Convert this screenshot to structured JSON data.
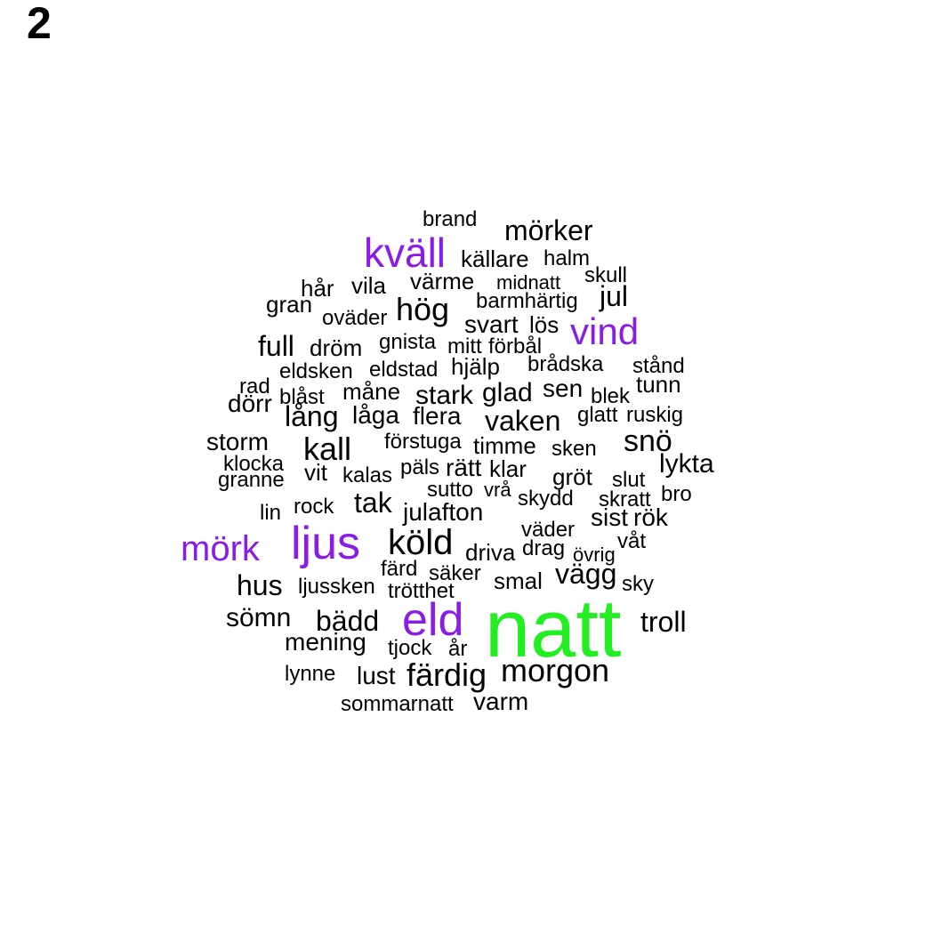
{
  "panel_label": "2",
  "colors": {
    "default": "#000000",
    "purple": "#8b1be6",
    "green": "#22ee22"
  },
  "words": [
    {
      "text": "brand",
      "weight": 2,
      "color": "default"
    },
    {
      "text": "mörker",
      "weight": 4,
      "color": "default"
    },
    {
      "text": "kväll",
      "weight": 7,
      "color": "purple"
    },
    {
      "text": "källare",
      "weight": 3,
      "color": "default"
    },
    {
      "text": "halm",
      "weight": 3,
      "color": "default"
    },
    {
      "text": "skull",
      "weight": 2,
      "color": "default"
    },
    {
      "text": "hår",
      "weight": 3,
      "color": "default"
    },
    {
      "text": "vila",
      "weight": 3,
      "color": "default"
    },
    {
      "text": "värme",
      "weight": 3,
      "color": "default"
    },
    {
      "text": "midnatt",
      "weight": 2,
      "color": "default"
    },
    {
      "text": "jul",
      "weight": 4,
      "color": "default"
    },
    {
      "text": "gran",
      "weight": 3,
      "color": "default"
    },
    {
      "text": "barmhärtig",
      "weight": 2,
      "color": "default"
    },
    {
      "text": "hög",
      "weight": 5,
      "color": "default"
    },
    {
      "text": "oväder",
      "weight": 2,
      "color": "default"
    },
    {
      "text": "svart",
      "weight": 4,
      "color": "default"
    },
    {
      "text": "lös",
      "weight": 3,
      "color": "default"
    },
    {
      "text": "vind",
      "weight": 6,
      "color": "purple"
    },
    {
      "text": "full",
      "weight": 4,
      "color": "default"
    },
    {
      "text": "dröm",
      "weight": 3,
      "color": "default"
    },
    {
      "text": "gnista",
      "weight": 2,
      "color": "default"
    },
    {
      "text": "mitt",
      "weight": 2,
      "color": "default"
    },
    {
      "text": "förbål",
      "weight": 2,
      "color": "default"
    },
    {
      "text": "eldsken",
      "weight": 2,
      "color": "default"
    },
    {
      "text": "eldstad",
      "weight": 2,
      "color": "default"
    },
    {
      "text": "hjälp",
      "weight": 3,
      "color": "default"
    },
    {
      "text": "brådska",
      "weight": 2,
      "color": "default"
    },
    {
      "text": "stånd",
      "weight": 2,
      "color": "default"
    },
    {
      "text": "rad",
      "weight": 2,
      "color": "default"
    },
    {
      "text": "blåst",
      "weight": 2,
      "color": "default"
    },
    {
      "text": "måne",
      "weight": 3,
      "color": "default"
    },
    {
      "text": "stark",
      "weight": 4,
      "color": "default"
    },
    {
      "text": "glad",
      "weight": 4,
      "color": "default"
    },
    {
      "text": "sen",
      "weight": 3,
      "color": "default"
    },
    {
      "text": "blek",
      "weight": 2,
      "color": "default"
    },
    {
      "text": "tunn",
      "weight": 2,
      "color": "default"
    },
    {
      "text": "dörr",
      "weight": 3,
      "color": "default"
    },
    {
      "text": "lång",
      "weight": 4,
      "color": "default"
    },
    {
      "text": "låga",
      "weight": 3,
      "color": "default"
    },
    {
      "text": "flera",
      "weight": 3,
      "color": "default"
    },
    {
      "text": "vaken",
      "weight": 4,
      "color": "default"
    },
    {
      "text": "glatt",
      "weight": 2,
      "color": "default"
    },
    {
      "text": "ruskig",
      "weight": 2,
      "color": "default"
    },
    {
      "text": "storm",
      "weight": 3,
      "color": "default"
    },
    {
      "text": "kall",
      "weight": 5,
      "color": "default"
    },
    {
      "text": "förstuga",
      "weight": 2,
      "color": "default"
    },
    {
      "text": "timme",
      "weight": 3,
      "color": "default"
    },
    {
      "text": "sken",
      "weight": 2,
      "color": "default"
    },
    {
      "text": "snö",
      "weight": 4,
      "color": "default"
    },
    {
      "text": "klocka",
      "weight": 2,
      "color": "default"
    },
    {
      "text": "lykta",
      "weight": 3,
      "color": "default"
    },
    {
      "text": "vit",
      "weight": 2,
      "color": "default"
    },
    {
      "text": "kalas",
      "weight": 2,
      "color": "default"
    },
    {
      "text": "päls",
      "weight": 2,
      "color": "default"
    },
    {
      "text": "rätt",
      "weight": 3,
      "color": "default"
    },
    {
      "text": "klar",
      "weight": 3,
      "color": "default"
    },
    {
      "text": "gröt",
      "weight": 3,
      "color": "default"
    },
    {
      "text": "slut",
      "weight": 2,
      "color": "default"
    },
    {
      "text": "granne",
      "weight": 2,
      "color": "default"
    },
    {
      "text": "sutto",
      "weight": 2,
      "color": "default"
    },
    {
      "text": "vrå",
      "weight": 2,
      "color": "default"
    },
    {
      "text": "skydd",
      "weight": 2,
      "color": "default"
    },
    {
      "text": "skratt",
      "weight": 2,
      "color": "default"
    },
    {
      "text": "bro",
      "weight": 2,
      "color": "default"
    },
    {
      "text": "lin",
      "weight": 2,
      "color": "default"
    },
    {
      "text": "rock",
      "weight": 2,
      "color": "default"
    },
    {
      "text": "tak",
      "weight": 4,
      "color": "default"
    },
    {
      "text": "julafton",
      "weight": 3,
      "color": "default"
    },
    {
      "text": "sist",
      "weight": 3,
      "color": "default"
    },
    {
      "text": "rök",
      "weight": 3,
      "color": "default"
    },
    {
      "text": "väder",
      "weight": 2,
      "color": "default"
    },
    {
      "text": "mörk",
      "weight": 6,
      "color": "purple"
    },
    {
      "text": "ljus",
      "weight": 8,
      "color": "purple"
    },
    {
      "text": "köld",
      "weight": 6,
      "color": "default"
    },
    {
      "text": "driva",
      "weight": 2,
      "color": "default"
    },
    {
      "text": "drag",
      "weight": 2,
      "color": "default"
    },
    {
      "text": "övrig",
      "weight": 2,
      "color": "default"
    },
    {
      "text": "våt",
      "weight": 2,
      "color": "default"
    },
    {
      "text": "färd",
      "weight": 2,
      "color": "default"
    },
    {
      "text": "säker",
      "weight": 2,
      "color": "default"
    },
    {
      "text": "vägg",
      "weight": 4,
      "color": "default"
    },
    {
      "text": "hus",
      "weight": 4,
      "color": "default"
    },
    {
      "text": "ljussken",
      "weight": 2,
      "color": "default"
    },
    {
      "text": "trötthet",
      "weight": 2,
      "color": "default"
    },
    {
      "text": "smal",
      "weight": 2,
      "color": "default"
    },
    {
      "text": "sky",
      "weight": 2,
      "color": "default"
    },
    {
      "text": "sömn",
      "weight": 3,
      "color": "default"
    },
    {
      "text": "bädd",
      "weight": 4,
      "color": "default"
    },
    {
      "text": "eld",
      "weight": 8,
      "color": "purple"
    },
    {
      "text": "natt",
      "weight": 13,
      "color": "green"
    },
    {
      "text": "troll",
      "weight": 4,
      "color": "default"
    },
    {
      "text": "mening",
      "weight": 3,
      "color": "default"
    },
    {
      "text": "tjock",
      "weight": 2,
      "color": "default"
    },
    {
      "text": "år",
      "weight": 2,
      "color": "default"
    },
    {
      "text": "lynne",
      "weight": 2,
      "color": "default"
    },
    {
      "text": "lust",
      "weight": 3,
      "color": "default"
    },
    {
      "text": "färdig",
      "weight": 5,
      "color": "default"
    },
    {
      "text": "morgon",
      "weight": 5,
      "color": "default"
    },
    {
      "text": "sommarnatt",
      "weight": 2,
      "color": "default"
    },
    {
      "text": "varm",
      "weight": 3,
      "color": "default"
    }
  ]
}
